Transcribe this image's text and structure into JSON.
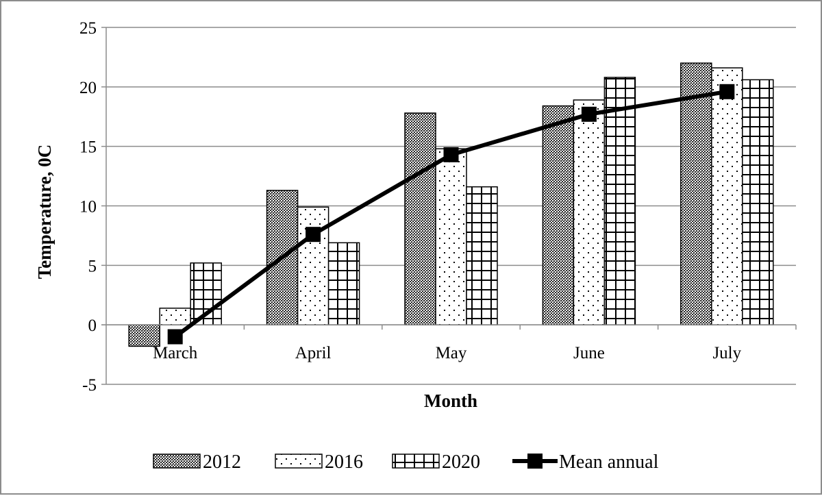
{
  "chart_data": {
    "type": "bar",
    "title": "",
    "xlabel": "Month",
    "ylabel": "Temperature, 0C",
    "categories": [
      "March",
      "April",
      "May",
      "June",
      "July"
    ],
    "ylim": [
      -5,
      25
    ],
    "yticks": [
      -5,
      0,
      5,
      10,
      15,
      20,
      25
    ],
    "grid": true,
    "legend_position": "bottom",
    "series": [
      {
        "name": "2012",
        "type": "bar",
        "pattern": "dense-dots",
        "values": [
          -1.8,
          11.3,
          17.8,
          18.4,
          22.0
        ]
      },
      {
        "name": "2016",
        "type": "bar",
        "pattern": "sparse-dots",
        "values": [
          1.4,
          9.9,
          14.8,
          18.9,
          21.6
        ]
      },
      {
        "name": "2020",
        "type": "bar",
        "pattern": "grid",
        "values": [
          5.2,
          6.9,
          11.6,
          20.8,
          20.6
        ]
      },
      {
        "name": "Mean annual",
        "type": "line",
        "marker": "square",
        "values": [
          -1.0,
          7.6,
          14.3,
          17.7,
          19.6
        ]
      }
    ]
  },
  "colors": {
    "bar_fill": "#ffffff",
    "bar_pattern": "#000000",
    "line": "#000000",
    "gridline": "#8c8c8c",
    "frame": "#8c8c8c"
  }
}
